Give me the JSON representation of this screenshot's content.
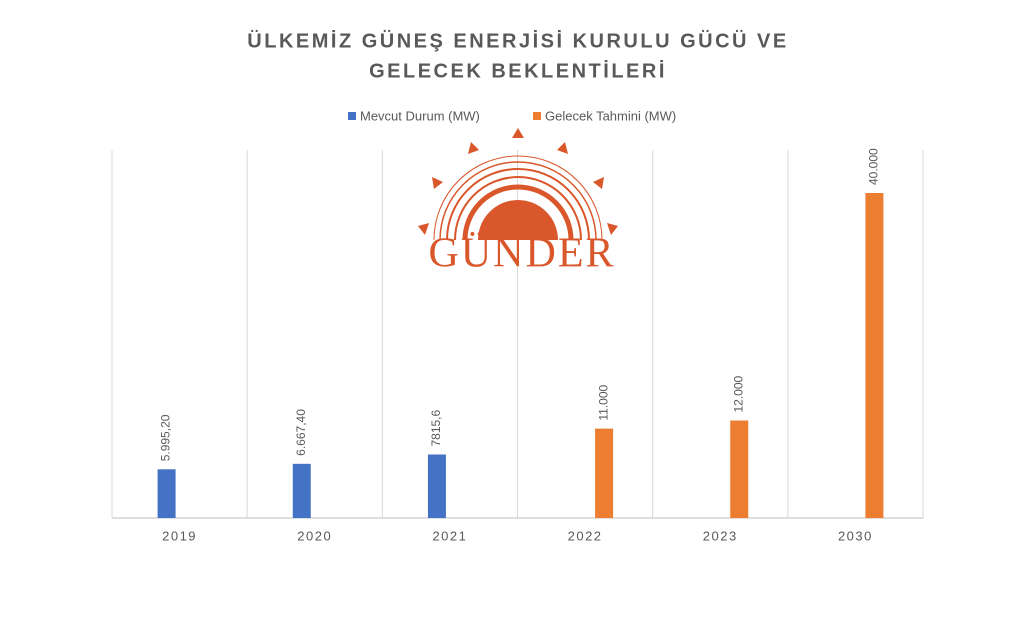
{
  "chart_data": {
    "type": "bar",
    "title": [
      "ÜLKEMİZ GÜNEŞ ENERJİSİ KURULU GÜCÜ VE",
      "GELECEK BEKLENTİLERİ"
    ],
    "logo": "GÜNDER",
    "categories": [
      "2019",
      "2020",
      "2021",
      "2022",
      "2023",
      "2030"
    ],
    "series": [
      {
        "name": "Mevcut Durum (MW)",
        "color": "#4472c4",
        "values": [
          5995.2,
          6667.4,
          7815.6,
          null,
          null,
          null
        ],
        "value_labels": [
          "5.995,20",
          "6.667,40",
          "7815,6",
          null,
          null,
          null
        ]
      },
      {
        "name": "Gelecek Tahmini (MW)",
        "color": "#ed7d31",
        "values": [
          null,
          null,
          null,
          11000,
          12000,
          40000
        ],
        "value_labels": [
          null,
          null,
          null,
          "11.000",
          "12.000",
          "40.000"
        ]
      }
    ],
    "grid": true
  }
}
